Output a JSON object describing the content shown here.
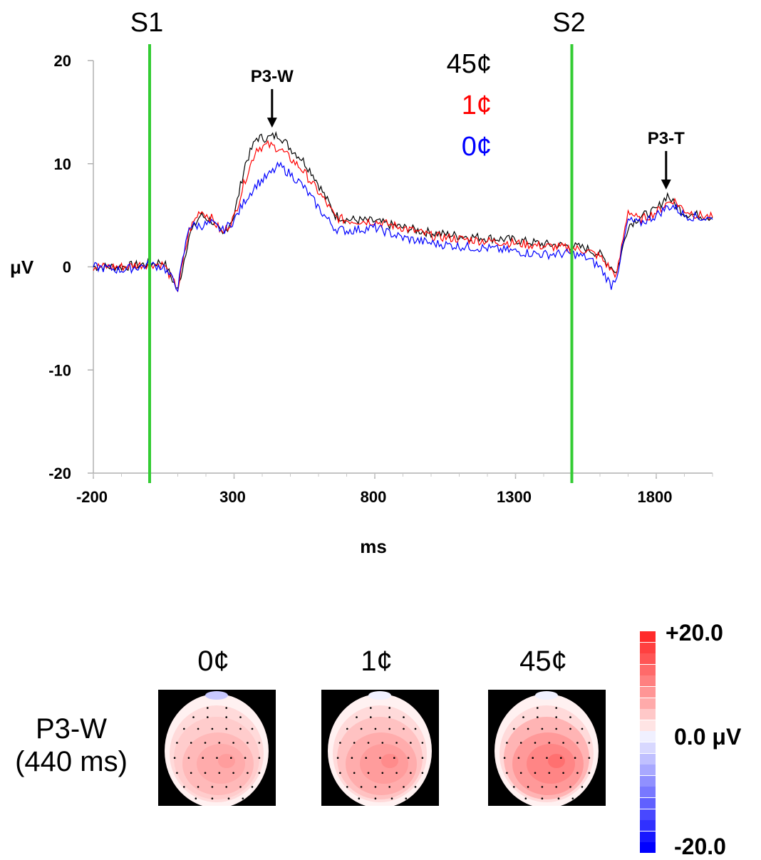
{
  "chart_data": {
    "type": "line",
    "xlabel": "ms",
    "ylabel": "μV",
    "xlim": [
      -200,
      2000
    ],
    "ylim": [
      -20,
      20
    ],
    "x_ticks": [
      "-200",
      "300",
      "800",
      "1300",
      "1800"
    ],
    "y_ticks": [
      "20",
      "10",
      "0",
      "-10",
      "-20"
    ],
    "markers": [
      {
        "label": "S1",
        "x": 0,
        "color": "#33cc33"
      },
      {
        "label": "S2",
        "x": 1500,
        "color": "#33cc33"
      }
    ],
    "annotations": [
      {
        "label": "P3-W",
        "x": 440,
        "y": 13.5
      },
      {
        "label": "P3-T",
        "x": 1840,
        "y": 7.5
      }
    ],
    "legend": [
      {
        "label": "45¢",
        "color": "#000000"
      },
      {
        "label": "1¢",
        "color": "#ff0000"
      },
      {
        "label": "0¢",
        "color": "#0000ff"
      }
    ],
    "series": [
      {
        "name": "45¢",
        "color": "#000000",
        "x": [
          -200,
          -100,
          0,
          50,
          100,
          140,
          180,
          220,
          260,
          300,
          340,
          380,
          420,
          460,
          500,
          540,
          580,
          620,
          660,
          700,
          800,
          900,
          1000,
          1100,
          1200,
          1300,
          1400,
          1500,
          1550,
          1600,
          1640,
          1660,
          1700,
          1740,
          1800,
          1840,
          1860,
          1900,
          1950,
          2000
        ],
        "y": [
          0,
          0,
          0.3,
          0.5,
          -2.3,
          3,
          5,
          4.5,
          3,
          5,
          10,
          12.5,
          12.5,
          12.8,
          11.5,
          10.5,
          9,
          7,
          5,
          4.6,
          4.4,
          3.8,
          3.3,
          3,
          2.8,
          2.6,
          2.2,
          2,
          1.8,
          1.2,
          0,
          -0.5,
          4,
          4.8,
          5.5,
          7,
          6.2,
          5.2,
          5,
          4.8
        ]
      },
      {
        "name": "1¢",
        "color": "#ff0000",
        "x": [
          -200,
          -100,
          0,
          50,
          100,
          140,
          180,
          220,
          260,
          300,
          340,
          380,
          420,
          460,
          500,
          540,
          580,
          620,
          660,
          700,
          800,
          900,
          1000,
          1100,
          1200,
          1300,
          1400,
          1500,
          1550,
          1600,
          1640,
          1660,
          1700,
          1740,
          1800,
          1840,
          1860,
          1900,
          1950,
          2000
        ],
        "y": [
          0,
          0,
          0.3,
          0.2,
          -2.2,
          3.5,
          5.5,
          4.7,
          3.2,
          4.8,
          8.5,
          11.5,
          11.8,
          11.5,
          10.5,
          9.5,
          8,
          6.5,
          4.8,
          4.5,
          4.4,
          3.8,
          3,
          2.7,
          2.5,
          2.3,
          2,
          1.8,
          1.6,
          1,
          -0.3,
          -0.8,
          5.5,
          4.5,
          5.3,
          6.2,
          6.5,
          5.5,
          5,
          4.8
        ]
      },
      {
        "name": "0¢",
        "color": "#0000ff",
        "x": [
          -200,
          -100,
          0,
          50,
          100,
          140,
          180,
          220,
          260,
          300,
          340,
          380,
          420,
          460,
          500,
          540,
          580,
          620,
          660,
          700,
          800,
          900,
          1000,
          1100,
          1200,
          1300,
          1400,
          1500,
          1550,
          1600,
          1640,
          1660,
          1700,
          1740,
          1800,
          1840,
          1860,
          1900,
          1950,
          2000
        ],
        "y": [
          0,
          -0.3,
          0.2,
          0,
          -2,
          4,
          4,
          4.2,
          3.5,
          4.5,
          6.5,
          8,
          8.8,
          9.8,
          9,
          8,
          6.5,
          5,
          3.7,
          3.5,
          3.8,
          2.8,
          2.3,
          2,
          1.8,
          1.5,
          1.2,
          1.3,
          0.9,
          0,
          -1.8,
          -0.8,
          4.5,
          4.2,
          5,
          5.8,
          5.9,
          5,
          4.8,
          4.6
        ]
      }
    ]
  },
  "topomaps": {
    "row_label_line1": "P3-W",
    "row_label_line2": "(440 ms)",
    "maps": [
      {
        "title": "0¢",
        "intensity": 0.55
      },
      {
        "title": "1¢",
        "intensity": 0.65
      },
      {
        "title": "45¢",
        "intensity": 0.8
      }
    ],
    "colorbar": {
      "max_label": "+20.0",
      "mid_label": "0.0 μV",
      "min_label": "-20.0",
      "colors": [
        "#ff2b2b",
        "#ff4040",
        "#ff5555",
        "#ff6a6a",
        "#ff8080",
        "#ff9595",
        "#ffaaaa",
        "#ffc8c8",
        "#ffe4e4",
        "#f0f0ff",
        "#d8d8ff",
        "#c0c0ff",
        "#a8a8ff",
        "#9090ff",
        "#7878ff",
        "#6060ff",
        "#4848ff",
        "#3030ff",
        "#1818ff",
        "#0000ff"
      ]
    }
  }
}
